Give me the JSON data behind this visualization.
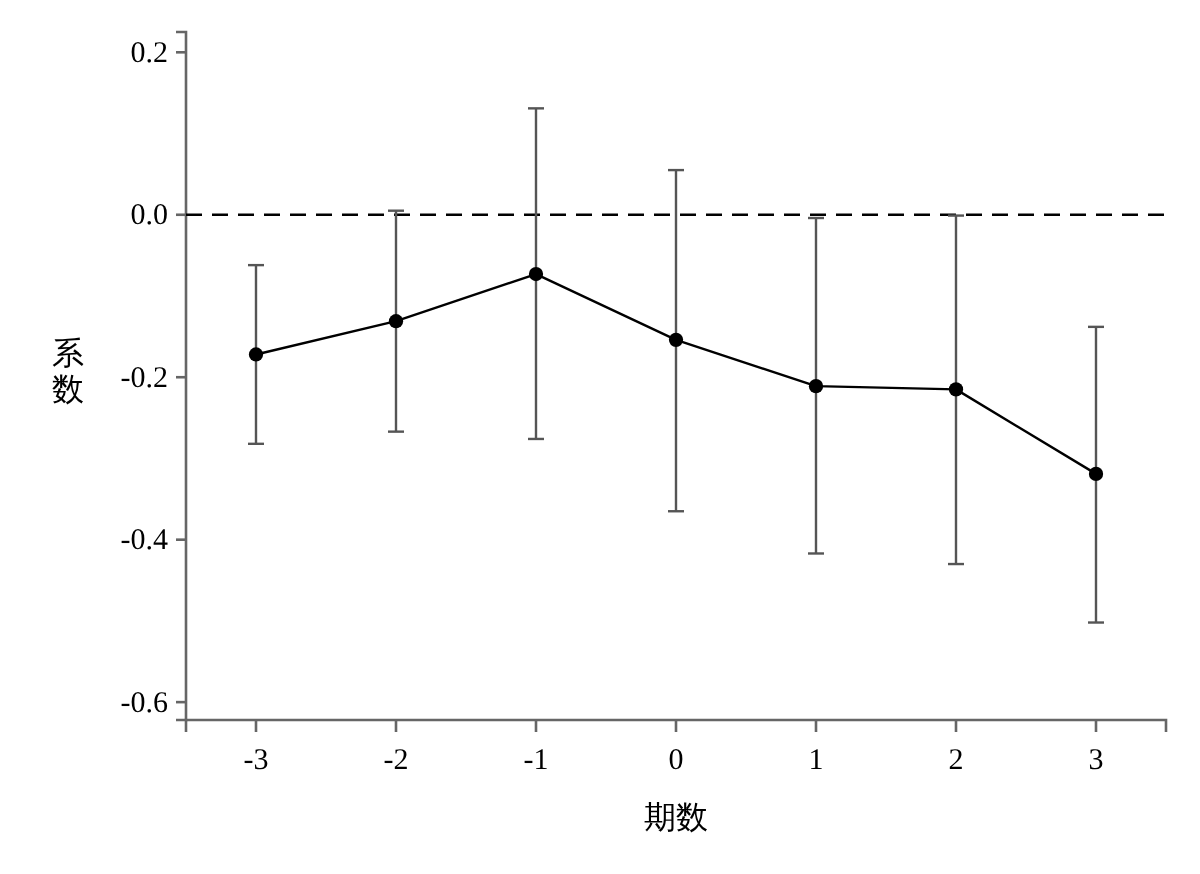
{
  "chart_data": {
    "type": "line",
    "xlabel": "期数",
    "ylabel": "系数",
    "x": [
      -3,
      -2,
      -1,
      0,
      1,
      2,
      3
    ],
    "series": [
      {
        "color": "#000000",
        "values": [
          -0.172,
          -0.131,
          -0.073,
          -0.154,
          -0.211,
          -0.215,
          -0.319
        ],
        "errors": [
          [
            -0.282,
            -0.062
          ],
          [
            -0.267,
            0.005
          ],
          [
            -0.276,
            0.131
          ],
          [
            -0.365,
            0.055
          ],
          [
            -0.417,
            -0.004
          ],
          [
            -0.43,
            -0.001
          ],
          [
            -0.502,
            -0.138
          ]
        ]
      }
    ],
    "xlim": [
      -3.5,
      3.5
    ],
    "xticks": [
      -3,
      -2,
      -1,
      0,
      1,
      2,
      3
    ],
    "ylim": [
      -0.622,
      0.225
    ],
    "yticks": [
      {
        "value": 0.2,
        "label": "0.2"
      },
      {
        "value": 0,
        "label": "0.0"
      },
      {
        "value": -0.2,
        "label": "-0.2"
      },
      {
        "value": -0.4,
        "label": "-0.4"
      },
      {
        "value": -0.6,
        "label": "-0.6"
      }
    ],
    "ref_lines": [
      {
        "axis": "y",
        "value": 0,
        "line_style": "dashed",
        "color": "#000000"
      }
    ],
    "grid": false,
    "marker": "circle",
    "line_style": "solid"
  }
}
